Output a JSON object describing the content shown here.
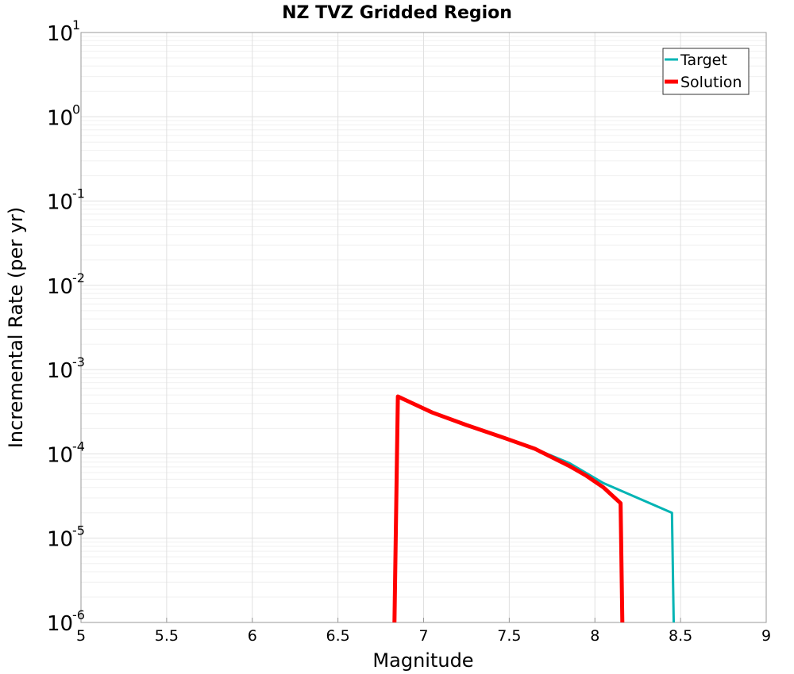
{
  "chart_data": {
    "type": "line",
    "title": "NZ TVZ Gridded Region",
    "xlabel": "Magnitude",
    "ylabel": "Incremental Rate (per yr)",
    "xlim": [
      5,
      9
    ],
    "ylim": [
      1e-06,
      10
    ],
    "yscale": "log",
    "grid": true,
    "legend_position": "top-right",
    "x_ticks": [
      "5",
      "5.5",
      "6",
      "6.5",
      "7",
      "7.5",
      "8",
      "8.5",
      "9"
    ],
    "y_ticks": [
      {
        "base": "10",
        "exp": "1"
      },
      {
        "base": "10",
        "exp": "0"
      },
      {
        "base": "10",
        "exp": "-1"
      },
      {
        "base": "10",
        "exp": "-2"
      },
      {
        "base": "10",
        "exp": "-3"
      },
      {
        "base": "10",
        "exp": "-4"
      },
      {
        "base": "10",
        "exp": "-5"
      },
      {
        "base": "10",
        "exp": "-6"
      }
    ],
    "series": [
      {
        "name": "Target",
        "color": "#00b4b4",
        "points": [
          [
            6.83,
            1e-06
          ],
          [
            6.85,
            0.00048
          ],
          [
            7.05,
            0.00031
          ],
          [
            7.25,
            0.00022
          ],
          [
            7.45,
            0.00016
          ],
          [
            7.65,
            0.000115
          ],
          [
            7.85,
            7.8e-05
          ],
          [
            8.05,
            4.5e-05
          ],
          [
            8.45,
            2e-05
          ],
          [
            8.46,
            1e-06
          ]
        ]
      },
      {
        "name": "Solution",
        "color": "#ff0000",
        "points": [
          [
            6.83,
            1e-06
          ],
          [
            6.85,
            0.00048
          ],
          [
            7.05,
            0.00031
          ],
          [
            7.25,
            0.00022
          ],
          [
            7.45,
            0.00016
          ],
          [
            7.65,
            0.000115
          ],
          [
            7.85,
            7.2e-05
          ],
          [
            7.95,
            5.5e-05
          ],
          [
            8.05,
            4e-05
          ],
          [
            8.15,
            2.6e-05
          ],
          [
            8.16,
            1e-06
          ]
        ]
      }
    ]
  }
}
